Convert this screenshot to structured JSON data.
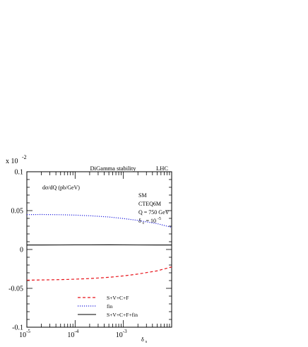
{
  "chart_data": {
    "type": "line",
    "title": "DiGamma stability",
    "title_right": "LHC",
    "ylabel": "dσ/dQ (pb/GeV)",
    "xlabel": "δ",
    "xlabel_sub": "s",
    "y_multiplier": {
      "base": "x 10",
      "exponent": "-2"
    },
    "xscale": "log",
    "xlim": [
      1e-05,
      0.01
    ],
    "ylim": [
      -0.1,
      0.1
    ],
    "y_ticks": [
      {
        "value": 0.1,
        "label": "0.1"
      },
      {
        "value": 0.05,
        "label": "0.05"
      },
      {
        "value": 0,
        "label": "0"
      },
      {
        "value": -0.05,
        "label": "-0.05"
      },
      {
        "value": -0.1,
        "label": "-0.1"
      }
    ],
    "x_ticks": [
      {
        "value": 1e-05,
        "base": "10",
        "exp": "-5"
      },
      {
        "value": 0.0001,
        "base": "10",
        "exp": "-4"
      },
      {
        "value": 0.001,
        "base": "10",
        "exp": "-3"
      }
    ],
    "info": {
      "model": "SM",
      "pdf": "CTEQ6M",
      "scale": "Q = 750 GeV",
      "delta_c_symbol": "δ",
      "delta_c_sub": "c",
      "delta_c_value": " = 10",
      "delta_c_exp": "-5"
    },
    "legend_placement": "bottom-center",
    "series": [
      {
        "name": "S+V+C+F",
        "color": "#e8141b",
        "dash": "dashed",
        "x": [
          1e-05,
          2e-05,
          5e-05,
          0.0001,
          0.0002,
          0.0005,
          0.001,
          0.002,
          0.005,
          0.01
        ],
        "y": [
          -0.0395,
          -0.0392,
          -0.0388,
          -0.0382,
          -0.0374,
          -0.0358,
          -0.034,
          -0.0316,
          -0.0275,
          -0.0225
        ]
      },
      {
        "name": "fin",
        "color": "#2222dd",
        "dash": "dotted",
        "x": [
          1e-05,
          2e-05,
          5e-05,
          0.0001,
          0.0002,
          0.0005,
          0.001,
          0.002,
          0.005,
          0.01
        ],
        "y": [
          0.0448,
          0.045,
          0.0447,
          0.0442,
          0.0434,
          0.0418,
          0.0398,
          0.0374,
          0.0332,
          0.0285
        ]
      },
      {
        "name": "S+V+C+F+fin",
        "color": "#000000",
        "dash": "solid",
        "x": [
          1e-05,
          2e-05,
          5e-05,
          0.0001,
          0.0002,
          0.0005,
          0.001,
          0.002,
          0.005,
          0.01
        ],
        "y": [
          0.0057,
          0.0057,
          0.0058,
          0.0059,
          0.0059,
          0.006,
          0.0059,
          0.0058,
          0.0057,
          0.0057
        ]
      }
    ]
  }
}
